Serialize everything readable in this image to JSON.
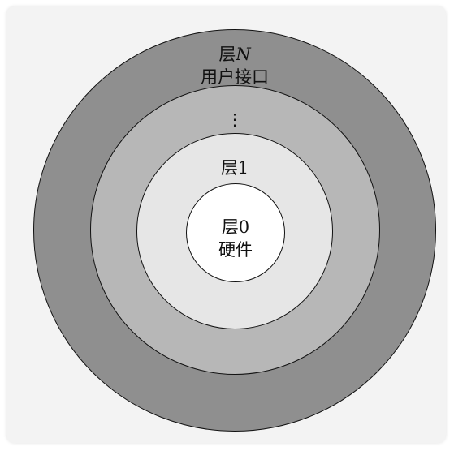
{
  "colors": {
    "outer_ring": "#8f8f8f",
    "middle_ring": "#b7b7b7",
    "inner_ring": "#e6e6e6",
    "core": "#ffffff",
    "stroke": "#111111",
    "background": "#f3f3f3"
  },
  "layers": {
    "outer": {
      "title_prefix": "层",
      "title_var": "N",
      "subtitle": "用户接口"
    },
    "middle": {
      "ellipsis": "⋮"
    },
    "inner": {
      "title": "层1"
    },
    "core": {
      "title": "层0",
      "subtitle": "硬件"
    }
  }
}
